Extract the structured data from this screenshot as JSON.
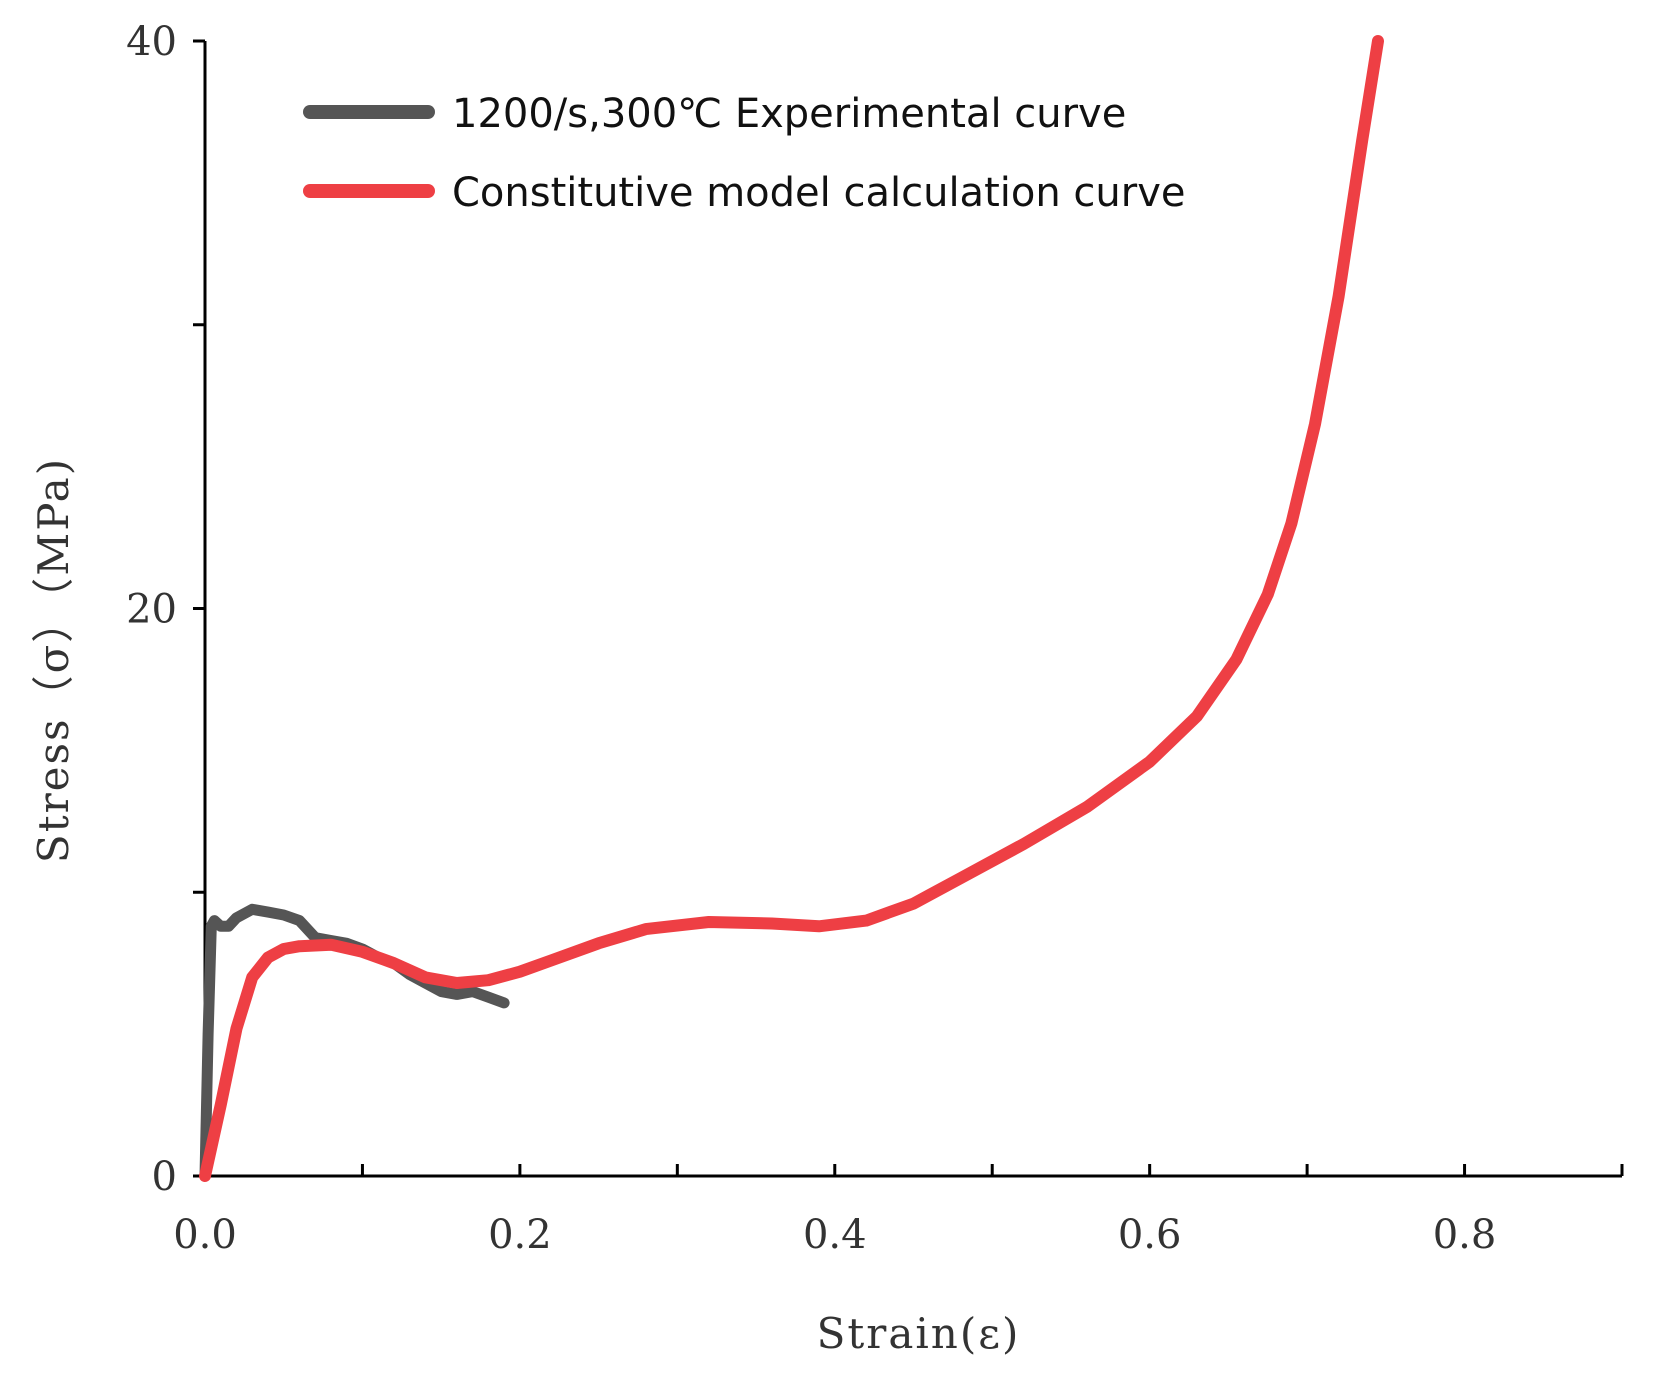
{
  "chart_data": {
    "type": "line",
    "title": "",
    "xlabel": "Strain(ε)",
    "ylabel": "Stress（σ）（MPa)",
    "xlim": [
      0,
      0.9
    ],
    "ylim": [
      0,
      40
    ],
    "xticks": [
      0.0,
      0.1,
      0.2,
      0.3,
      0.4,
      0.5,
      0.6,
      0.7,
      0.8,
      0.9
    ],
    "xtick_labels": [
      "0.0",
      "0.2",
      "0.4",
      "0.6",
      "0.8"
    ],
    "xtick_label_values": [
      0.0,
      0.2,
      0.4,
      0.6,
      0.8
    ],
    "yticks": [
      0,
      10,
      20,
      30,
      40
    ],
    "ytick_labels": [
      "0",
      "20",
      "40"
    ],
    "ytick_label_values": [
      0,
      20,
      40
    ],
    "grid": false,
    "legend_position": "top-left",
    "series": [
      {
        "name": "1200/s,300℃ Experimental curve",
        "color": "#555555",
        "points": [
          [
            0.0,
            0.0
          ],
          [
            0.002,
            5.0
          ],
          [
            0.004,
            8.8
          ],
          [
            0.006,
            9.0
          ],
          [
            0.01,
            8.8
          ],
          [
            0.015,
            8.8
          ],
          [
            0.02,
            9.1
          ],
          [
            0.03,
            9.4
          ],
          [
            0.04,
            9.3
          ],
          [
            0.05,
            9.2
          ],
          [
            0.06,
            9.0
          ],
          [
            0.07,
            8.4
          ],
          [
            0.08,
            8.3
          ],
          [
            0.09,
            8.2
          ],
          [
            0.1,
            8.0
          ],
          [
            0.11,
            7.7
          ],
          [
            0.12,
            7.5
          ],
          [
            0.13,
            7.1
          ],
          [
            0.14,
            6.8
          ],
          [
            0.15,
            6.5
          ],
          [
            0.16,
            6.4
          ],
          [
            0.17,
            6.5
          ],
          [
            0.18,
            6.3
          ],
          [
            0.19,
            6.1
          ]
        ]
      },
      {
        "name": "Constitutive model calculation curve",
        "color": "#ee3f44",
        "points": [
          [
            0.0,
            0.0
          ],
          [
            0.01,
            2.5
          ],
          [
            0.02,
            5.2
          ],
          [
            0.03,
            7.0
          ],
          [
            0.04,
            7.7
          ],
          [
            0.05,
            8.0
          ],
          [
            0.06,
            8.1
          ],
          [
            0.08,
            8.15
          ],
          [
            0.1,
            7.9
          ],
          [
            0.12,
            7.5
          ],
          [
            0.14,
            7.0
          ],
          [
            0.16,
            6.8
          ],
          [
            0.18,
            6.9
          ],
          [
            0.2,
            7.2
          ],
          [
            0.22,
            7.6
          ],
          [
            0.25,
            8.2
          ],
          [
            0.28,
            8.7
          ],
          [
            0.32,
            8.95
          ],
          [
            0.36,
            8.9
          ],
          [
            0.39,
            8.8
          ],
          [
            0.42,
            9.0
          ],
          [
            0.45,
            9.6
          ],
          [
            0.48,
            10.5
          ],
          [
            0.52,
            11.7
          ],
          [
            0.56,
            13.0
          ],
          [
            0.6,
            14.6
          ],
          [
            0.63,
            16.2
          ],
          [
            0.655,
            18.2
          ],
          [
            0.675,
            20.5
          ],
          [
            0.69,
            23.0
          ],
          [
            0.705,
            26.5
          ],
          [
            0.72,
            31.0
          ],
          [
            0.735,
            36.5
          ],
          [
            0.745,
            40.0
          ]
        ]
      }
    ]
  }
}
